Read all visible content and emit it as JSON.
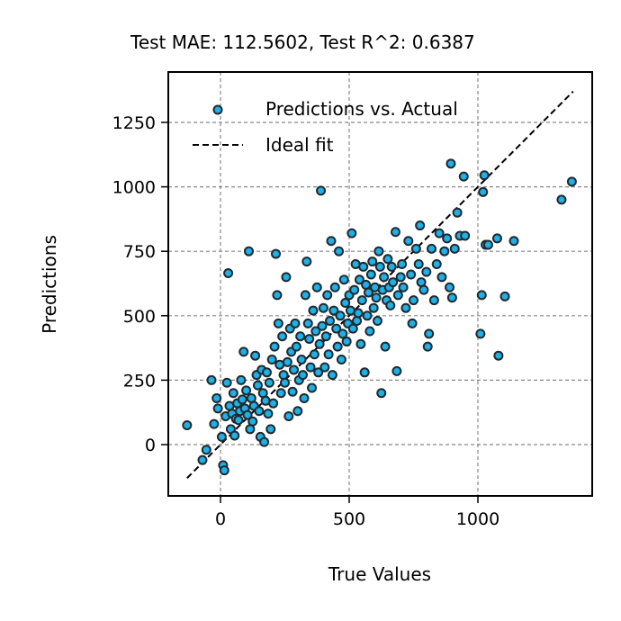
{
  "chart_data": {
    "type": "scatter",
    "title": "Test MAE: 112.5602, Test R^2: 0.6387",
    "xlabel": "True Values",
    "ylabel": "Predictions",
    "xlim": [
      -200,
      1440
    ],
    "ylim": [
      -200,
      1450
    ],
    "xticks": [
      "0",
      "500",
      "1000"
    ],
    "xtick_values": [
      0,
      500,
      1000
    ],
    "yticks": [
      "0",
      "250",
      "500",
      "750",
      "1000",
      "1250"
    ],
    "ytick_values": [
      0,
      250,
      500,
      750,
      1000,
      1250
    ],
    "grid": true,
    "legend_position": "upper-left",
    "colors": {
      "marker_fill": "#1fb0e6",
      "marker_edge": "#1e2a30",
      "ideal_line": "#000000",
      "grid": "#888888"
    },
    "series": [
      {
        "name": "Predictions vs. Actual",
        "points": [
          [
            -130,
            75
          ],
          [
            -70,
            -60
          ],
          [
            -55,
            -20
          ],
          [
            -35,
            250
          ],
          [
            -25,
            80
          ],
          [
            -15,
            180
          ],
          [
            -10,
            140
          ],
          [
            5,
            30
          ],
          [
            10,
            -80
          ],
          [
            15,
            -100
          ],
          [
            20,
            110
          ],
          [
            25,
            240
          ],
          [
            30,
            665
          ],
          [
            35,
            150
          ],
          [
            40,
            60
          ],
          [
            45,
            120
          ],
          [
            50,
            200
          ],
          [
            55,
            35
          ],
          [
            60,
            100
          ],
          [
            65,
            160
          ],
          [
            70,
            95
          ],
          [
            75,
            130
          ],
          [
            80,
            250
          ],
          [
            85,
            175
          ],
          [
            90,
            360
          ],
          [
            95,
            140
          ],
          [
            100,
            210
          ],
          [
            105,
            115
          ],
          [
            110,
            750
          ],
          [
            115,
            60
          ],
          [
            120,
            180
          ],
          [
            125,
            90
          ],
          [
            130,
            150
          ],
          [
            135,
            345
          ],
          [
            140,
            270
          ],
          [
            145,
            230
          ],
          [
            150,
            130
          ],
          [
            155,
            30
          ],
          [
            160,
            290
          ],
          [
            165,
            200
          ],
          [
            170,
            10
          ],
          [
            175,
            170
          ],
          [
            180,
            280
          ],
          [
            185,
            120
          ],
          [
            190,
            240
          ],
          [
            195,
            60
          ],
          [
            200,
            330
          ],
          [
            205,
            160
          ],
          [
            210,
            380
          ],
          [
            215,
            740
          ],
          [
            220,
            580
          ],
          [
            225,
            470
          ],
          [
            230,
            310
          ],
          [
            235,
            200
          ],
          [
            240,
            420
          ],
          [
            245,
            270
          ],
          [
            250,
            240
          ],
          [
            255,
            650
          ],
          [
            260,
            320
          ],
          [
            265,
            110
          ],
          [
            270,
            450
          ],
          [
            275,
            360
          ],
          [
            280,
            205
          ],
          [
            285,
            290
          ],
          [
            290,
            470
          ],
          [
            295,
            380
          ],
          [
            300,
            130
          ],
          [
            305,
            250
          ],
          [
            310,
            420
          ],
          [
            315,
            330
          ],
          [
            320,
            270
          ],
          [
            325,
            180
          ],
          [
            330,
            580
          ],
          [
            335,
            710
          ],
          [
            340,
            470
          ],
          [
            345,
            410
          ],
          [
            350,
            300
          ],
          [
            355,
            220
          ],
          [
            360,
            520
          ],
          [
            365,
            350
          ],
          [
            370,
            440
          ],
          [
            375,
            610
          ],
          [
            380,
            280
          ],
          [
            385,
            390
          ],
          [
            390,
            985
          ],
          [
            395,
            460
          ],
          [
            400,
            530
          ],
          [
            405,
            300
          ],
          [
            410,
            420
          ],
          [
            415,
            580
          ],
          [
            420,
            350
          ],
          [
            425,
            480
          ],
          [
            430,
            790
          ],
          [
            435,
            270
          ],
          [
            440,
            520
          ],
          [
            445,
            610
          ],
          [
            450,
            450
          ],
          [
            455,
            380
          ],
          [
            460,
            750
          ],
          [
            465,
            500
          ],
          [
            470,
            330
          ],
          [
            475,
            430
          ],
          [
            480,
            640
          ],
          [
            485,
            550
          ],
          [
            490,
            400
          ],
          [
            495,
            470
          ],
          [
            500,
            580
          ],
          [
            505,
            520
          ],
          [
            510,
            820
          ],
          [
            515,
            450
          ],
          [
            520,
            600
          ],
          [
            525,
            700
          ],
          [
            530,
            480
          ],
          [
            535,
            510
          ],
          [
            540,
            640
          ],
          [
            545,
            390
          ],
          [
            550,
            560
          ],
          [
            555,
            690
          ],
          [
            560,
            280
          ],
          [
            565,
            620
          ],
          [
            570,
            500
          ],
          [
            575,
            590
          ],
          [
            580,
            440
          ],
          [
            585,
            660
          ],
          [
            590,
            710
          ],
          [
            595,
            530
          ],
          [
            600,
            610
          ],
          [
            605,
            570
          ],
          [
            610,
            480
          ],
          [
            615,
            750
          ],
          [
            620,
            690
          ],
          [
            625,
            200
          ],
          [
            630,
            600
          ],
          [
            635,
            650
          ],
          [
            640,
            380
          ],
          [
            645,
            560
          ],
          [
            650,
            720
          ],
          [
            655,
            610
          ],
          [
            660,
            540
          ],
          [
            665,
            690
          ],
          [
            670,
            630
          ],
          [
            680,
            825
          ],
          [
            685,
            285
          ],
          [
            690,
            580
          ],
          [
            700,
            650
          ],
          [
            705,
            700
          ],
          [
            710,
            610
          ],
          [
            720,
            530
          ],
          [
            730,
            790
          ],
          [
            740,
            660
          ],
          [
            745,
            470
          ],
          [
            750,
            560
          ],
          [
            760,
            760
          ],
          [
            770,
            700
          ],
          [
            775,
            850
          ],
          [
            780,
            630
          ],
          [
            790,
            600
          ],
          [
            800,
            670
          ],
          [
            805,
            380
          ],
          [
            810,
            430
          ],
          [
            820,
            760
          ],
          [
            830,
            560
          ],
          [
            840,
            700
          ],
          [
            850,
            820
          ],
          [
            860,
            650
          ],
          [
            870,
            750
          ],
          [
            880,
            800
          ],
          [
            890,
            610
          ],
          [
            895,
            1090
          ],
          [
            900,
            570
          ],
          [
            910,
            760
          ],
          [
            920,
            900
          ],
          [
            930,
            810
          ],
          [
            945,
            1040
          ],
          [
            950,
            810
          ],
          [
            1010,
            430
          ],
          [
            1015,
            580
          ],
          [
            1020,
            980
          ],
          [
            1025,
            1045
          ],
          [
            1030,
            775
          ],
          [
            1040,
            775
          ],
          [
            1075,
            800
          ],
          [
            1080,
            345
          ],
          [
            1105,
            575
          ],
          [
            1140,
            790
          ],
          [
            1325,
            950
          ],
          [
            1365,
            1020
          ]
        ]
      },
      {
        "name": "Ideal fit",
        "line": [
          [
            -130,
            -130
          ],
          [
            1370,
            1370
          ]
        ]
      }
    ]
  }
}
